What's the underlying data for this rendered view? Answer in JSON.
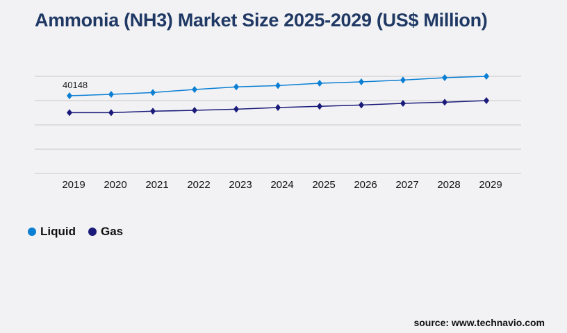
{
  "title": "Ammonia (NH3) Market Size 2025-2029 (US$ Million)",
  "source": "source: www.technavio.com",
  "chart_data": {
    "type": "line",
    "title": "Ammonia (NH3) Market Size 2025-2029 (US$ Million)",
    "categories": [
      "2019",
      "2020",
      "2021",
      "2022",
      "2023",
      "2024",
      "2025",
      "2026",
      "2027",
      "2028",
      "2029"
    ],
    "ylim": [
      0,
      50200
    ],
    "grid": true,
    "legend_position": "bottom-left",
    "series": [
      {
        "name": "Liquid",
        "color": "#0a7fd4",
        "values": [
          40148,
          40870,
          41840,
          43380,
          44710,
          45420,
          46610,
          47320,
          48290,
          49470,
          50190
        ]
      },
      {
        "name": "Gas",
        "color": "#1a1a7a",
        "values": [
          31440,
          31440,
          32160,
          32620,
          33230,
          34060,
          34670,
          35380,
          36210,
          36820,
          37640
        ]
      }
    ],
    "data_labels": [
      {
        "series": "Liquid",
        "category": "2019",
        "text": "40148"
      }
    ]
  }
}
